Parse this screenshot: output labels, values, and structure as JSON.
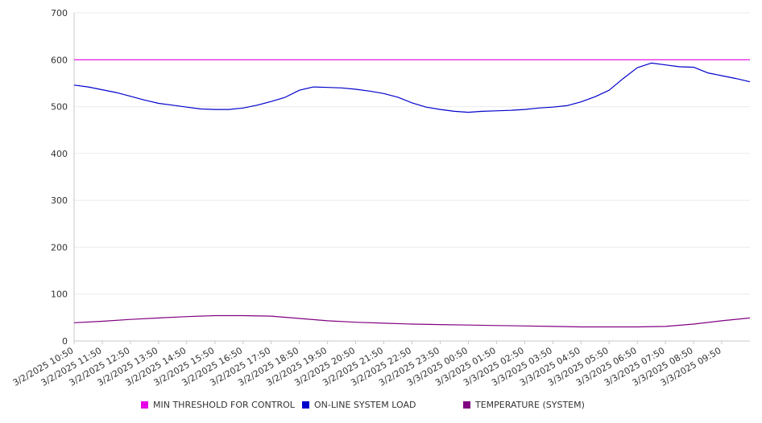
{
  "chart_data": {
    "type": "line",
    "title": "",
    "xlabel": "",
    "ylabel": "",
    "ylim": [
      0,
      700
    ],
    "yticks": [
      0,
      100,
      200,
      300,
      400,
      500,
      600,
      700
    ],
    "grid": true,
    "legend_position": "bottom",
    "x_start": "3/2/2025 10:50",
    "x_end": "3/3/2025 10:50",
    "x_tick_labels": [
      "3/2/2025 10:50",
      "3/2/2025 11:50",
      "3/2/2025 12:50",
      "3/2/2025 13:50",
      "3/2/2025 14:50",
      "3/2/2025 15:50",
      "3/2/2025 16:50",
      "3/2/2025 17:50",
      "3/2/2025 18:50",
      "3/2/2025 19:50",
      "3/2/2025 20:50",
      "3/2/2025 21:50",
      "3/2/2025 22:50",
      "3/2/2025 23:50",
      "3/3/2025 00:50",
      "3/3/2025 01:50",
      "3/3/2025 02:50",
      "3/3/2025 03:50",
      "3/3/2025 04:50",
      "3/3/2025 05:50",
      "3/3/2025 06:50",
      "3/3/2025 07:50",
      "3/3/2025 08:50",
      "3/3/2025 09:50"
    ],
    "series": [
      {
        "name": "MIN THRESHOLD FOR CONTROL",
        "color": "#e600e6",
        "x": [
          "3/2/2025 10:50",
          "3/3/2025 10:50"
        ],
        "values": [
          600,
          600
        ]
      },
      {
        "name": "ON-LINE SYSTEM LOAD",
        "color": "#0000cc",
        "x": [
          "3/2/2025 10:50",
          "3/2/2025 11:20",
          "3/2/2025 11:50",
          "3/2/2025 12:20",
          "3/2/2025 12:50",
          "3/2/2025 13:20",
          "3/2/2025 13:50",
          "3/2/2025 14:20",
          "3/2/2025 14:50",
          "3/2/2025 15:20",
          "3/2/2025 15:50",
          "3/2/2025 16:20",
          "3/2/2025 16:50",
          "3/2/2025 17:20",
          "3/2/2025 17:50",
          "3/2/2025 18:20",
          "3/2/2025 18:50",
          "3/2/2025 19:20",
          "3/2/2025 19:50",
          "3/2/2025 20:20",
          "3/2/2025 20:50",
          "3/2/2025 21:20",
          "3/2/2025 21:50",
          "3/2/2025 22:20",
          "3/2/2025 22:50",
          "3/2/2025 23:20",
          "3/2/2025 23:50",
          "3/3/2025 00:20",
          "3/3/2025 00:50",
          "3/3/2025 01:20",
          "3/3/2025 01:50",
          "3/3/2025 02:20",
          "3/3/2025 02:50",
          "3/3/2025 03:20",
          "3/3/2025 03:50",
          "3/3/2025 04:20",
          "3/3/2025 04:50",
          "3/3/2025 05:20",
          "3/3/2025 05:50",
          "3/3/2025 06:20",
          "3/3/2025 06:50",
          "3/3/2025 07:20",
          "3/3/2025 07:50",
          "3/3/2025 08:20",
          "3/3/2025 08:50",
          "3/3/2025 09:20",
          "3/3/2025 09:50",
          "3/3/2025 10:20",
          "3/3/2025 10:50"
        ],
        "values": [
          546,
          542,
          536,
          530,
          522,
          514,
          507,
          503,
          499,
          495,
          494,
          494,
          497,
          503,
          511,
          520,
          535,
          542,
          541,
          540,
          537,
          533,
          528,
          520,
          508,
          499,
          494,
          490,
          488,
          490,
          491,
          492,
          494,
          497,
          499,
          502,
          510,
          521,
          535,
          560,
          583,
          593,
          589,
          585,
          584,
          572,
          566,
          560,
          553
        ]
      },
      {
        "name": "TEMPERATURE (SYSTEM)",
        "color": "#800080",
        "x": [
          "3/2/2025 10:50",
          "3/2/2025 11:50",
          "3/2/2025 12:50",
          "3/2/2025 13:50",
          "3/2/2025 14:50",
          "3/2/2025 15:50",
          "3/2/2025 16:50",
          "3/2/2025 17:50",
          "3/2/2025 18:50",
          "3/2/2025 19:50",
          "3/2/2025 20:50",
          "3/2/2025 21:50",
          "3/2/2025 22:50",
          "3/2/2025 23:50",
          "3/3/2025 00:50",
          "3/3/2025 01:50",
          "3/3/2025 02:50",
          "3/3/2025 03:50",
          "3/3/2025 04:50",
          "3/3/2025 05:50",
          "3/3/2025 06:50",
          "3/3/2025 07:50",
          "3/3/2025 08:50",
          "3/3/2025 09:50",
          "3/3/2025 10:50"
        ],
        "values": [
          39,
          42,
          46,
          49,
          52,
          54,
          54,
          53,
          48,
          43,
          40,
          38,
          36,
          35,
          34,
          33,
          32,
          31,
          30,
          30,
          30,
          31,
          36,
          43,
          49
        ]
      }
    ]
  }
}
